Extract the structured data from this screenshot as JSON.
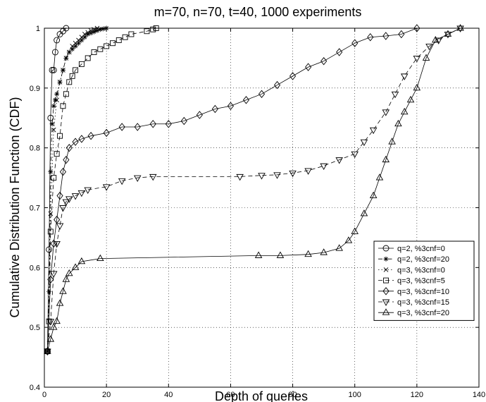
{
  "chart_data": {
    "type": "line",
    "title": "m=70, n=70, t=40, 1000 experiments",
    "xlabel": "Depth of queries",
    "ylabel": "Cumulative Distribution Function (CDF)",
    "xlim": [
      0,
      140
    ],
    "ylim": [
      0.4,
      1
    ],
    "xticks": [
      0,
      20,
      40,
      60,
      80,
      100,
      120,
      140
    ],
    "yticks": [
      0.4,
      0.5,
      0.6,
      0.7,
      0.8,
      0.9,
      1
    ],
    "xtick_labels": [
      "0",
      "20",
      "40",
      "60",
      "80",
      "100",
      "120",
      "140"
    ],
    "ytick_labels": [
      "0.4",
      "0.5",
      "0.6",
      "0.7",
      "0.8",
      "0.9",
      "1"
    ],
    "grid": true,
    "legend_position": "bottom-right",
    "series": [
      {
        "name": "q=2, %3cnf=0",
        "marker": "circle",
        "dash": "solid",
        "x": [
          1,
          1.5,
          2,
          2.5,
          3,
          3.5,
          4,
          5,
          6,
          7
        ],
        "y": [
          0.46,
          0.63,
          0.85,
          0.93,
          0.93,
          0.96,
          0.98,
          0.99,
          0.995,
          1.0
        ]
      },
      {
        "name": "q=2, %3cnf=20",
        "marker": "star",
        "dash": "dashdot",
        "x": [
          1,
          1.5,
          2,
          2.5,
          3,
          3.5,
          4,
          5,
          6,
          7,
          8,
          9,
          10,
          11,
          12,
          13,
          14,
          15,
          16,
          17,
          18,
          19,
          20
        ],
        "y": [
          0.46,
          0.56,
          0.76,
          0.84,
          0.87,
          0.88,
          0.89,
          0.91,
          0.93,
          0.95,
          0.96,
          0.965,
          0.97,
          0.975,
          0.98,
          0.985,
          0.99,
          0.992,
          0.994,
          0.996,
          0.998,
          0.999,
          1.0
        ]
      },
      {
        "name": "q=3, %3cnf=0",
        "marker": "x",
        "dash": "dotted",
        "x": [
          1,
          2,
          3,
          4,
          5,
          6,
          7,
          8,
          9,
          10,
          11,
          12,
          13,
          14,
          15,
          16,
          17
        ],
        "y": [
          0.46,
          0.69,
          0.83,
          0.88,
          0.91,
          0.93,
          0.95,
          0.96,
          0.97,
          0.975,
          0.98,
          0.985,
          0.99,
          0.993,
          0.996,
          0.998,
          1.0
        ]
      },
      {
        "name": "q=3, %3cnf=5",
        "marker": "square",
        "dash": "dashed",
        "x": [
          1,
          1.5,
          2,
          3,
          4,
          5,
          6,
          7,
          8,
          9,
          10,
          12,
          14,
          16,
          18,
          20,
          22,
          24,
          26,
          28,
          33,
          35,
          36
        ],
        "y": [
          0.46,
          0.51,
          0.66,
          0.75,
          0.79,
          0.82,
          0.87,
          0.89,
          0.91,
          0.92,
          0.93,
          0.94,
          0.95,
          0.96,
          0.965,
          0.97,
          0.975,
          0.98,
          0.985,
          0.99,
          0.995,
          0.998,
          1.0
        ]
      },
      {
        "name": "q=3, %3cnf=10",
        "marker": "diamond",
        "dash": "solid",
        "x": [
          1,
          2,
          3,
          4,
          5,
          6,
          7,
          8,
          10,
          12,
          15,
          20,
          25,
          30,
          35,
          40,
          45,
          50,
          55,
          60,
          65,
          70,
          75,
          80,
          85,
          90,
          95,
          100,
          105,
          110,
          115,
          120
        ],
        "y": [
          0.46,
          0.58,
          0.64,
          0.68,
          0.72,
          0.76,
          0.78,
          0.8,
          0.81,
          0.815,
          0.82,
          0.825,
          0.835,
          0.835,
          0.84,
          0.84,
          0.845,
          0.855,
          0.865,
          0.87,
          0.88,
          0.89,
          0.905,
          0.92,
          0.935,
          0.945,
          0.96,
          0.975,
          0.985,
          0.987,
          0.99,
          1.0
        ]
      },
      {
        "name": "q=3, %3cnf=15",
        "marker": "triangle-down",
        "dash": "dashed",
        "x": [
          1,
          2,
          3,
          4,
          5,
          6,
          7,
          8,
          10,
          12,
          14,
          20,
          25,
          30,
          35,
          63,
          70,
          75,
          80,
          85,
          90,
          95,
          100,
          103,
          106,
          110,
          113,
          116,
          120,
          124,
          127,
          130,
          134
        ],
        "y": [
          0.46,
          0.51,
          0.59,
          0.64,
          0.67,
          0.7,
          0.71,
          0.715,
          0.72,
          0.725,
          0.73,
          0.735,
          0.745,
          0.75,
          0.752,
          0.752,
          0.754,
          0.755,
          0.758,
          0.762,
          0.77,
          0.78,
          0.79,
          0.81,
          0.83,
          0.86,
          0.89,
          0.92,
          0.95,
          0.97,
          0.98,
          0.99,
          1.0
        ]
      },
      {
        "name": "q=3, %3cnf=20",
        "marker": "triangle-up",
        "dash": "solid",
        "x": [
          1,
          2,
          3,
          4,
          5,
          6,
          7,
          8,
          10,
          12,
          18,
          69,
          76,
          85,
          90,
          95,
          98,
          100,
          103,
          106,
          108,
          110,
          112,
          114,
          116,
          118,
          120,
          123,
          126,
          130,
          134
        ],
        "y": [
          0.46,
          0.48,
          0.5,
          0.51,
          0.54,
          0.56,
          0.58,
          0.59,
          0.6,
          0.61,
          0.615,
          0.62,
          0.62,
          0.622,
          0.625,
          0.632,
          0.645,
          0.66,
          0.69,
          0.72,
          0.75,
          0.78,
          0.81,
          0.84,
          0.86,
          0.88,
          0.9,
          0.95,
          0.98,
          0.99,
          1.0
        ]
      }
    ]
  }
}
